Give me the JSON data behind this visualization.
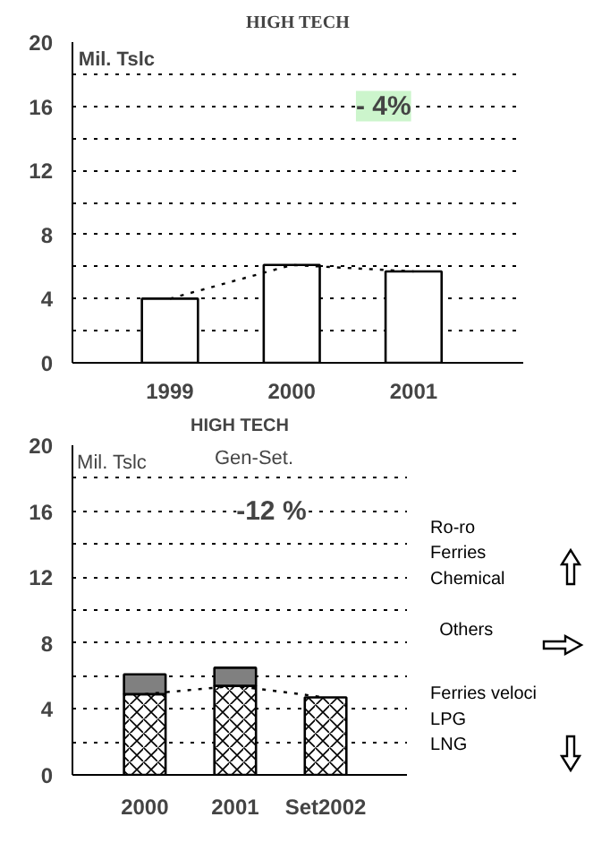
{
  "chart_data": [
    {
      "type": "bar",
      "title": "HIGH TECH",
      "categories": [
        "1999",
        "2000",
        "2001"
      ],
      "series": [
        {
          "color": "#ffffff",
          "values": [
            4,
            6.1,
            5.7
          ]
        },
        {
          "type": "line",
          "color": "#000000",
          "values": [
            4,
            6.1,
            5.7
          ]
        }
      ],
      "ylim": [
        0,
        20
      ],
      "yticks": [
        0,
        {
          "value": 2,
          "label": null
        },
        4,
        {
          "value": 6,
          "label": null
        },
        8,
        {
          "value": 10,
          "label": null
        },
        12,
        {
          "value": 14,
          "label": null
        },
        16,
        {
          "value": 18,
          "label": null
        },
        20
      ],
      "grid": "y",
      "line_style": "dotted",
      "annotations": [
        "Mil. Tslc",
        "- 4%"
      ]
    },
    {
      "type": "bar",
      "title": "HIGH TECH",
      "categories": [
        "2000",
        "2001",
        "Set2002"
      ],
      "stacked": true,
      "series": [
        {
          "name": "Gen-Set.",
          "color": "#ffffff",
          "values": [
            4.9,
            5.4,
            4.7
          ]
        },
        {
          "color": "#808080",
          "values": [
            1.2,
            1.1,
            null
          ]
        },
        {
          "type": "line",
          "color": "#000000",
          "values": [
            4.9,
            5.4,
            4.7
          ]
        }
      ],
      "ylim": [
        0,
        20
      ],
      "yticks": [
        0,
        {
          "value": 2,
          "label": null
        },
        4,
        {
          "value": 6,
          "label": null
        },
        8,
        {
          "value": 10,
          "label": null
        },
        12,
        {
          "value": 14,
          "label": null
        },
        16,
        {
          "value": 18,
          "label": null
        },
        20
      ],
      "grid": "y",
      "line_style": "dotted",
      "legend": "top",
      "annotations": [
        "Mil. Tslc",
        "-12 %",
        "Ro-ro",
        "Ferries",
        "Chemical",
        "Others",
        "Ferries veloci",
        "LPG",
        "LNG"
      ]
    }
  ]
}
